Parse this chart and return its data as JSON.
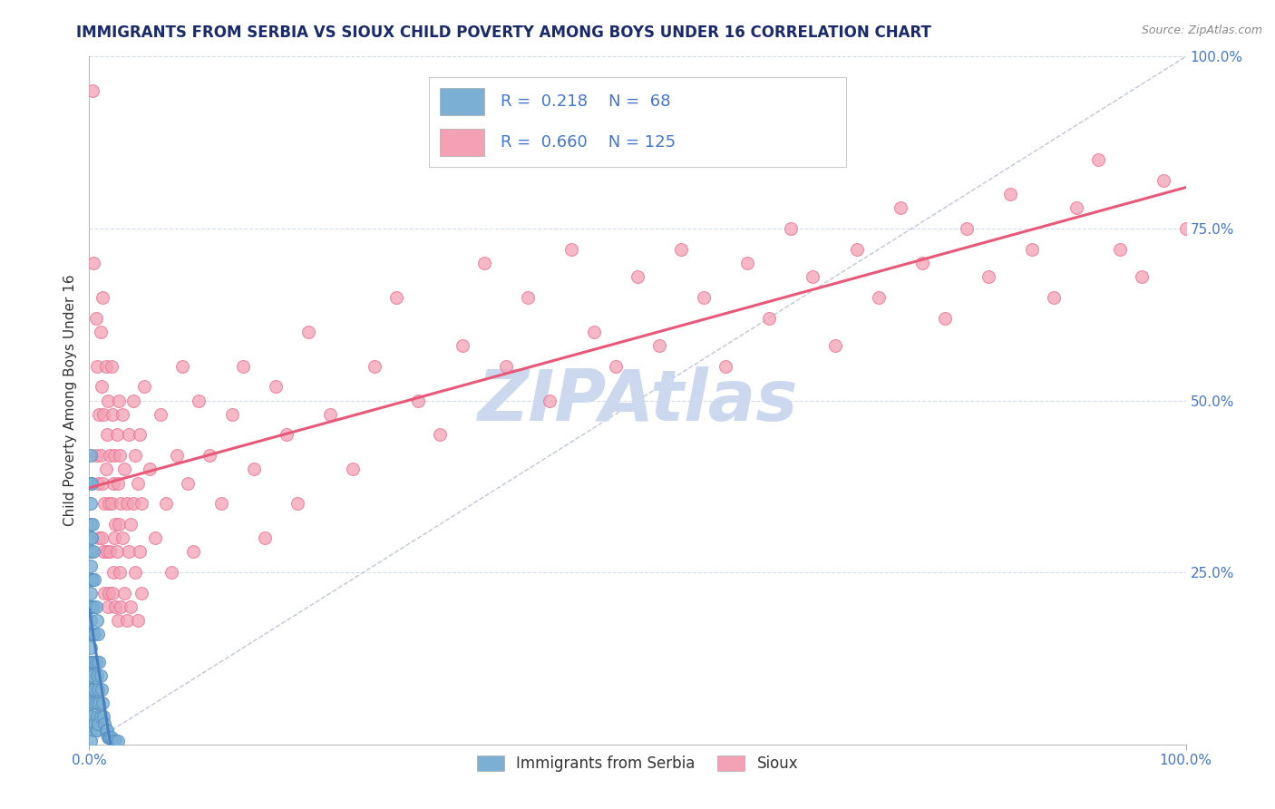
{
  "title": "IMMIGRANTS FROM SERBIA VS SIOUX CHILD POVERTY AMONG BOYS UNDER 16 CORRELATION CHART",
  "source": "Source: ZipAtlas.com",
  "ylabel": "Child Poverty Among Boys Under 16",
  "serbia_color": "#7bafd4",
  "sioux_color": "#f4a0b5",
  "serbia_edge_color": "#5590c0",
  "sioux_edge_color": "#e87090",
  "serbia_line_color": "#4a7fc0",
  "sioux_line_color": "#e85878",
  "diagonal_color": "#b0b8d0",
  "watermark_color": "#ccd8ee",
  "title_color": "#1a2a6b",
  "tick_color": "#4477cc",
  "grid_color": "#d0d8e8",
  "serbia_points": [
    [
      0.001,
      0.42
    ],
    [
      0.001,
      0.38
    ],
    [
      0.001,
      0.35
    ],
    [
      0.001,
      0.32
    ],
    [
      0.001,
      0.3
    ],
    [
      0.001,
      0.28
    ],
    [
      0.001,
      0.26
    ],
    [
      0.001,
      0.24
    ],
    [
      0.001,
      0.22
    ],
    [
      0.001,
      0.2
    ],
    [
      0.001,
      0.18
    ],
    [
      0.001,
      0.16
    ],
    [
      0.001,
      0.14
    ],
    [
      0.001,
      0.12
    ],
    [
      0.001,
      0.1
    ],
    [
      0.001,
      0.08
    ],
    [
      0.001,
      0.06
    ],
    [
      0.001,
      0.04
    ],
    [
      0.001,
      0.02
    ],
    [
      0.001,
      0.005
    ],
    [
      0.002,
      0.38
    ],
    [
      0.002,
      0.3
    ],
    [
      0.002,
      0.24
    ],
    [
      0.002,
      0.2
    ],
    [
      0.002,
      0.16
    ],
    [
      0.002,
      0.12
    ],
    [
      0.002,
      0.08
    ],
    [
      0.002,
      0.04
    ],
    [
      0.003,
      0.32
    ],
    [
      0.003,
      0.24
    ],
    [
      0.003,
      0.16
    ],
    [
      0.003,
      0.1
    ],
    [
      0.004,
      0.28
    ],
    [
      0.004,
      0.2
    ],
    [
      0.004,
      0.12
    ],
    [
      0.004,
      0.06
    ],
    [
      0.005,
      0.24
    ],
    [
      0.005,
      0.16
    ],
    [
      0.005,
      0.08
    ],
    [
      0.005,
      0.03
    ],
    [
      0.006,
      0.2
    ],
    [
      0.006,
      0.12
    ],
    [
      0.006,
      0.06
    ],
    [
      0.006,
      0.02
    ],
    [
      0.007,
      0.18
    ],
    [
      0.007,
      0.1
    ],
    [
      0.007,
      0.04
    ],
    [
      0.007,
      0.02
    ],
    [
      0.008,
      0.16
    ],
    [
      0.008,
      0.08
    ],
    [
      0.008,
      0.03
    ],
    [
      0.009,
      0.12
    ],
    [
      0.009,
      0.06
    ],
    [
      0.01,
      0.1
    ],
    [
      0.01,
      0.04
    ],
    [
      0.011,
      0.08
    ],
    [
      0.012,
      0.06
    ],
    [
      0.013,
      0.04
    ],
    [
      0.014,
      0.03
    ],
    [
      0.015,
      0.02
    ],
    [
      0.016,
      0.02
    ],
    [
      0.017,
      0.01
    ],
    [
      0.018,
      0.01
    ],
    [
      0.019,
      0.01
    ],
    [
      0.02,
      0.01
    ],
    [
      0.022,
      0.005
    ],
    [
      0.024,
      0.005
    ],
    [
      0.026,
      0.005
    ]
  ],
  "sioux_points": [
    [
      0.003,
      0.95
    ],
    [
      0.004,
      0.7
    ],
    [
      0.006,
      0.62
    ],
    [
      0.006,
      0.42
    ],
    [
      0.007,
      0.55
    ],
    [
      0.008,
      0.38
    ],
    [
      0.009,
      0.48
    ],
    [
      0.009,
      0.3
    ],
    [
      0.01,
      0.6
    ],
    [
      0.01,
      0.42
    ],
    [
      0.011,
      0.52
    ],
    [
      0.011,
      0.3
    ],
    [
      0.012,
      0.65
    ],
    [
      0.012,
      0.38
    ],
    [
      0.013,
      0.28
    ],
    [
      0.013,
      0.48
    ],
    [
      0.014,
      0.35
    ],
    [
      0.014,
      0.22
    ],
    [
      0.015,
      0.55
    ],
    [
      0.015,
      0.4
    ],
    [
      0.016,
      0.28
    ],
    [
      0.016,
      0.45
    ],
    [
      0.017,
      0.2
    ],
    [
      0.017,
      0.5
    ],
    [
      0.018,
      0.35
    ],
    [
      0.018,
      0.22
    ],
    [
      0.019,
      0.42
    ],
    [
      0.019,
      0.28
    ],
    [
      0.02,
      0.55
    ],
    [
      0.02,
      0.35
    ],
    [
      0.021,
      0.22
    ],
    [
      0.021,
      0.48
    ],
    [
      0.022,
      0.38
    ],
    [
      0.022,
      0.25
    ],
    [
      0.023,
      0.42
    ],
    [
      0.023,
      0.3
    ],
    [
      0.024,
      0.32
    ],
    [
      0.024,
      0.2
    ],
    [
      0.025,
      0.45
    ],
    [
      0.025,
      0.28
    ],
    [
      0.026,
      0.38
    ],
    [
      0.026,
      0.18
    ],
    [
      0.027,
      0.5
    ],
    [
      0.027,
      0.32
    ],
    [
      0.028,
      0.25
    ],
    [
      0.028,
      0.42
    ],
    [
      0.029,
      0.35
    ],
    [
      0.029,
      0.2
    ],
    [
      0.03,
      0.48
    ],
    [
      0.03,
      0.3
    ],
    [
      0.032,
      0.4
    ],
    [
      0.032,
      0.22
    ],
    [
      0.034,
      0.35
    ],
    [
      0.034,
      0.18
    ],
    [
      0.036,
      0.45
    ],
    [
      0.036,
      0.28
    ],
    [
      0.038,
      0.32
    ],
    [
      0.038,
      0.2
    ],
    [
      0.04,
      0.5
    ],
    [
      0.04,
      0.35
    ],
    [
      0.042,
      0.25
    ],
    [
      0.042,
      0.42
    ],
    [
      0.044,
      0.38
    ],
    [
      0.044,
      0.18
    ],
    [
      0.046,
      0.45
    ],
    [
      0.046,
      0.28
    ],
    [
      0.048,
      0.35
    ],
    [
      0.048,
      0.22
    ],
    [
      0.05,
      0.52
    ],
    [
      0.055,
      0.4
    ],
    [
      0.06,
      0.3
    ],
    [
      0.065,
      0.48
    ],
    [
      0.07,
      0.35
    ],
    [
      0.075,
      0.25
    ],
    [
      0.08,
      0.42
    ],
    [
      0.085,
      0.55
    ],
    [
      0.09,
      0.38
    ],
    [
      0.095,
      0.28
    ],
    [
      0.1,
      0.5
    ],
    [
      0.11,
      0.42
    ],
    [
      0.12,
      0.35
    ],
    [
      0.13,
      0.48
    ],
    [
      0.14,
      0.55
    ],
    [
      0.15,
      0.4
    ],
    [
      0.16,
      0.3
    ],
    [
      0.17,
      0.52
    ],
    [
      0.18,
      0.45
    ],
    [
      0.19,
      0.35
    ],
    [
      0.2,
      0.6
    ],
    [
      0.22,
      0.48
    ],
    [
      0.24,
      0.4
    ],
    [
      0.26,
      0.55
    ],
    [
      0.28,
      0.65
    ],
    [
      0.3,
      0.5
    ],
    [
      0.32,
      0.45
    ],
    [
      0.34,
      0.58
    ],
    [
      0.36,
      0.7
    ],
    [
      0.38,
      0.55
    ],
    [
      0.4,
      0.65
    ],
    [
      0.42,
      0.5
    ],
    [
      0.44,
      0.72
    ],
    [
      0.46,
      0.6
    ],
    [
      0.48,
      0.55
    ],
    [
      0.5,
      0.68
    ],
    [
      0.52,
      0.58
    ],
    [
      0.54,
      0.72
    ],
    [
      0.56,
      0.65
    ],
    [
      0.58,
      0.55
    ],
    [
      0.6,
      0.7
    ],
    [
      0.62,
      0.62
    ],
    [
      0.64,
      0.75
    ],
    [
      0.66,
      0.68
    ],
    [
      0.68,
      0.58
    ],
    [
      0.7,
      0.72
    ],
    [
      0.72,
      0.65
    ],
    [
      0.74,
      0.78
    ],
    [
      0.76,
      0.7
    ],
    [
      0.78,
      0.62
    ],
    [
      0.8,
      0.75
    ],
    [
      0.82,
      0.68
    ],
    [
      0.84,
      0.8
    ],
    [
      0.86,
      0.72
    ],
    [
      0.88,
      0.65
    ],
    [
      0.9,
      0.78
    ],
    [
      0.92,
      0.85
    ],
    [
      0.94,
      0.72
    ],
    [
      0.96,
      0.68
    ],
    [
      0.98,
      0.82
    ],
    [
      1.0,
      0.75
    ]
  ],
  "xlim": [
    0,
    1
  ],
  "ylim": [
    0,
    1
  ]
}
